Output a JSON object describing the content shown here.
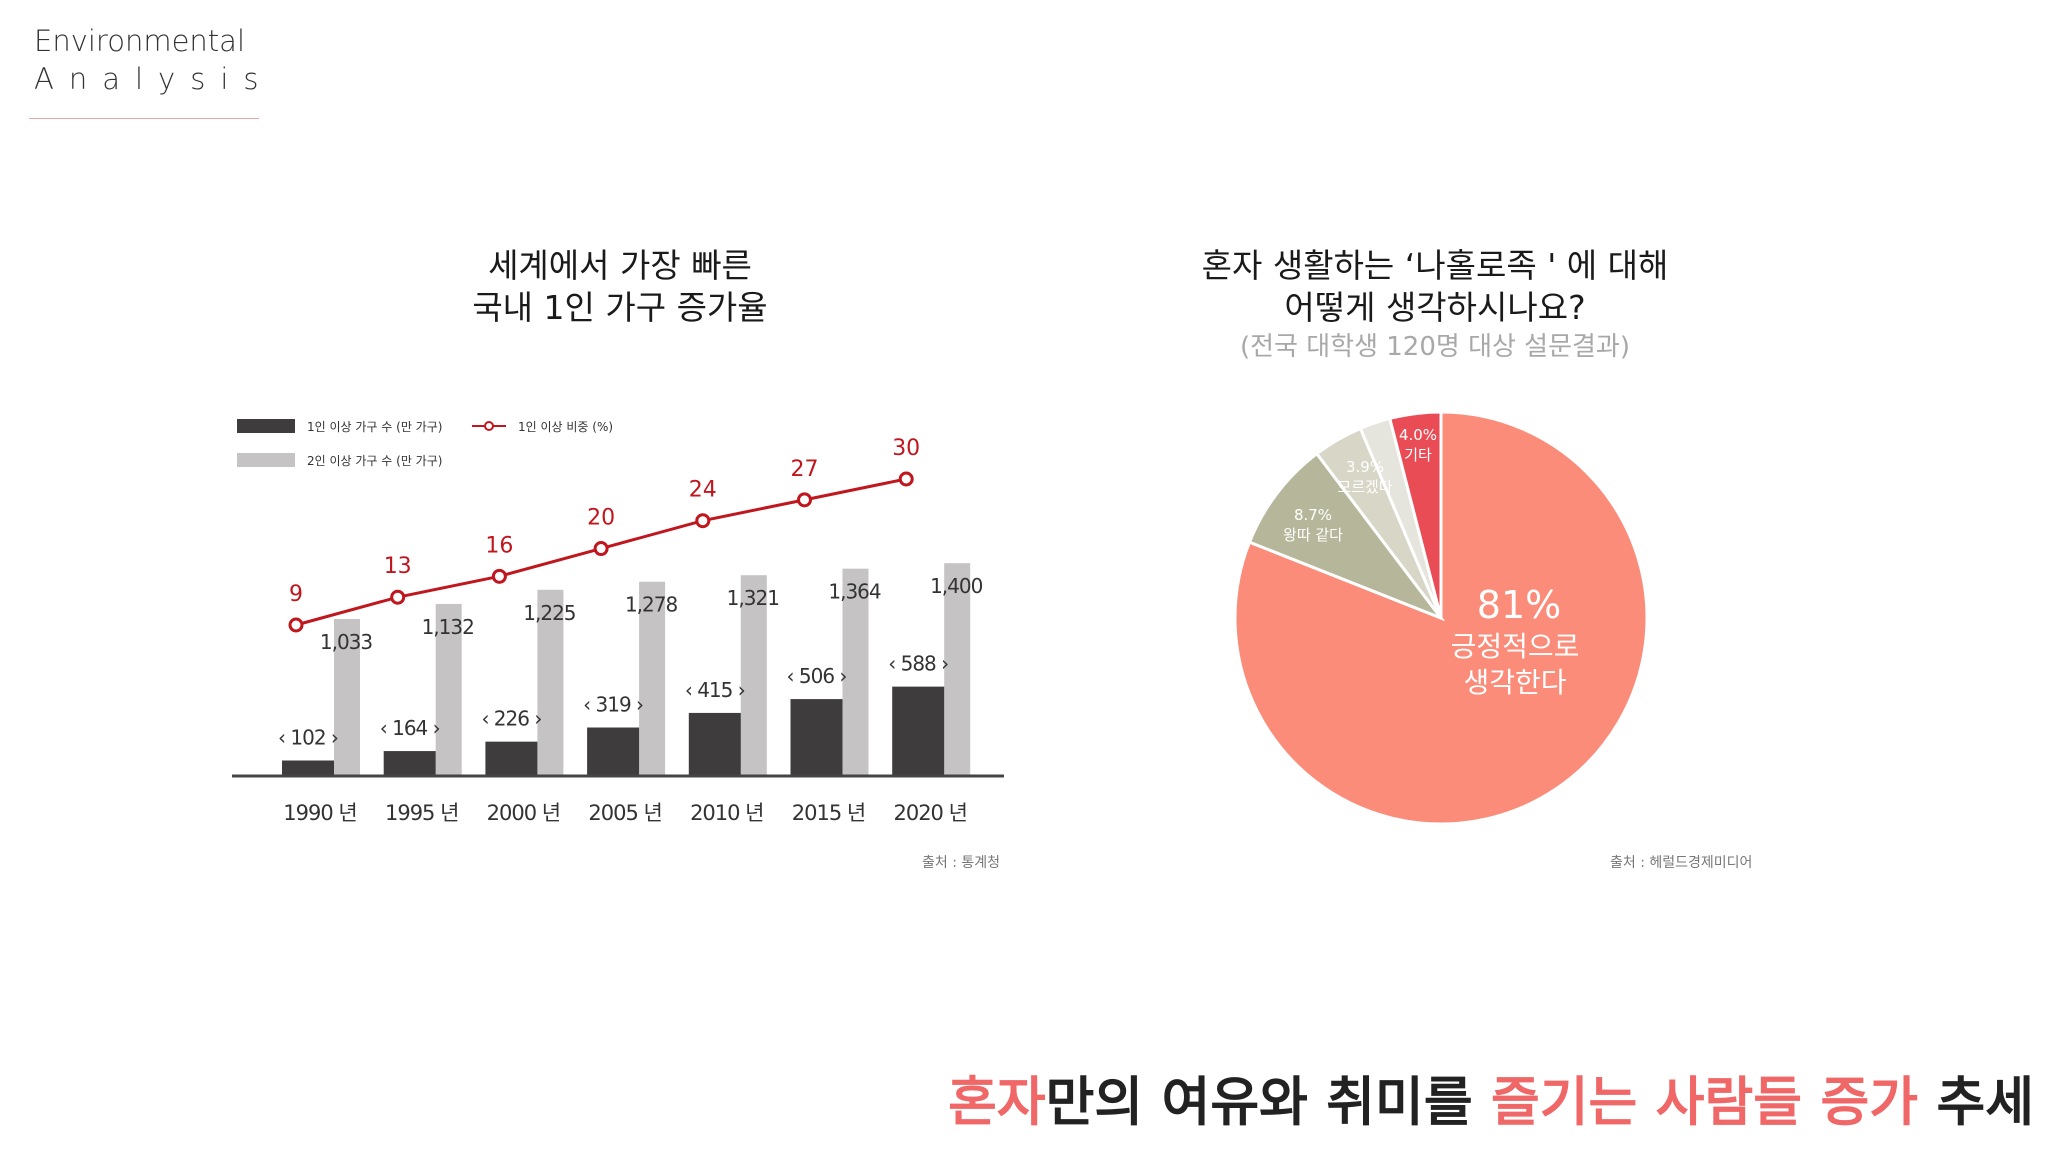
{
  "header": {
    "line1": "Environmental",
    "line2": "Analysis"
  },
  "tagline": [
    {
      "text": "혼자",
      "highlight": true
    },
    {
      "text": "만의 여유와 취미를 ",
      "highlight": false
    },
    {
      "text": "즐기는 사람들 증가",
      "highlight": true
    },
    {
      "text": " 추세",
      "highlight": false
    }
  ],
  "colors": {
    "accent": "#f06767",
    "single": "#3f3c3d",
    "multi": "#c5c3c4",
    "line": "#c0161e"
  },
  "chart_data": [
    {
      "type": "bar",
      "title_lines": [
        "세계에서 가장 빠른",
        "국내 1인 가구 증가율"
      ],
      "categories": [
        "1990 년",
        "1995 년",
        "2000 년",
        "2005 년",
        "2010 년",
        "2015 년",
        "2020 년"
      ],
      "series": [
        {
          "name": "1인 이상 가구 수 (만 가구)",
          "kind": "bar",
          "values": [
            102,
            164,
            226,
            319,
            415,
            506,
            588
          ],
          "labels": [
            "‹ 102 ›",
            "‹ 164 ›",
            "‹ 226 ›",
            "‹ 319 ›",
            "‹ 415 ›",
            "‹ 506 ›",
            "‹ 588 ›"
          ]
        },
        {
          "name": "2인 이상 가구 수 (만 가구)",
          "kind": "bar",
          "values": [
            1033,
            1132,
            1225,
            1278,
            1321,
            1364,
            1400
          ],
          "labels": [
            "1,033",
            "1,132",
            "1,225",
            "1,278",
            "1,321",
            "1,364",
            "1,400"
          ]
        },
        {
          "name": "1인 이상 비중 (%)",
          "kind": "line",
          "values": [
            9,
            13,
            16,
            20,
            24,
            27,
            30
          ],
          "labels": [
            "9",
            "13",
            "16",
            "20",
            "24",
            "27",
            "30"
          ]
        }
      ],
      "source": "출처 : 통계청",
      "legend": "top-left"
    },
    {
      "type": "pie",
      "title_lines": [
        "혼자 생활하는 ‘나홀로족 ' 에  대해",
        "어떻게 생각하시나요?"
      ],
      "subtitle": "(전국 대학생 120명 대상 설문결과)",
      "slices": [
        {
          "value": 81.0,
          "pct": "81%",
          "label": "긍정적으로",
          "label2": "생각한다",
          "color": "#fb8c79"
        },
        {
          "value": 8.7,
          "pct": "8.7%",
          "label": "왕따 같다",
          "color": "#b6b79a"
        },
        {
          "value": 3.9,
          "pct": "3.9%",
          "label": "모르겠다",
          "color": "#d7d6c7"
        },
        {
          "value": 2.4,
          "pct": "",
          "label": "",
          "color": "#e6e5dd"
        },
        {
          "value": 4.0,
          "pct": "4.0%",
          "label": "기타",
          "color": "#e94c55"
        }
      ],
      "source": "출처 : 헤럴드경제미디어"
    }
  ]
}
